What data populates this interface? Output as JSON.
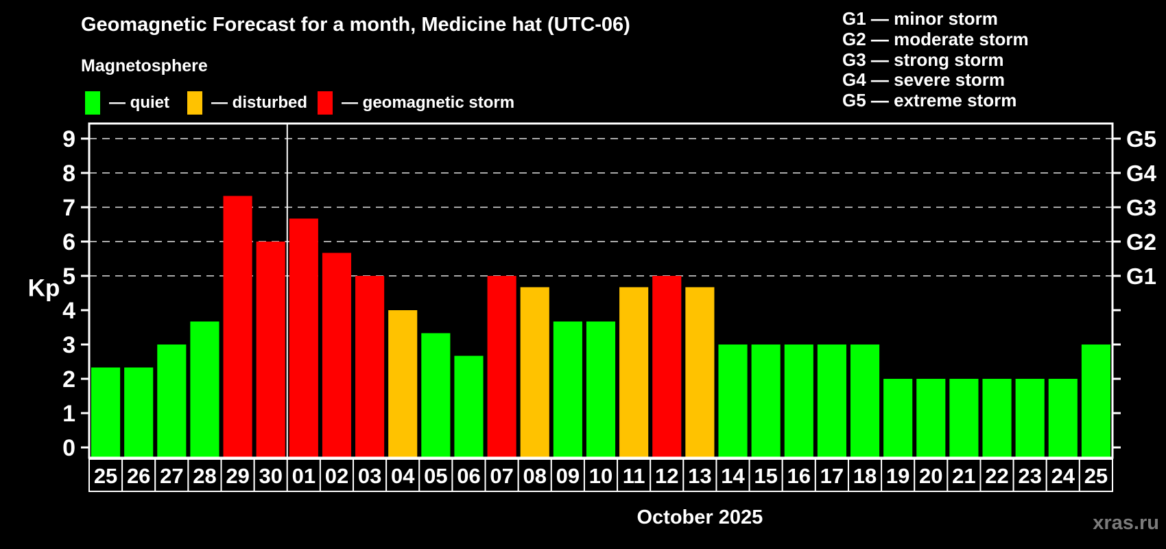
{
  "header": {
    "title": "Geomagnetic Forecast for a month, Medicine hat (UTC-06)",
    "subtitle": "Magnetosphere"
  },
  "legend": {
    "items": [
      {
        "label": "— quiet",
        "status": "quiet"
      },
      {
        "label": "— disturbed",
        "status": "disturbed"
      },
      {
        "label": "— geomagnetic storm",
        "status": "storm"
      }
    ]
  },
  "g_legend": {
    "items": [
      "G1 — minor storm",
      "G2 — moderate storm",
      "G3 — strong storm",
      "G4 — severe storm",
      "G5 — extreme storm"
    ]
  },
  "footer": {
    "watermark": "xras.ru"
  },
  "chart_data": {
    "type": "bar",
    "title": "Geomagnetic Forecast for a month, Medicine hat (UTC-06)",
    "xlabel": "October 2025",
    "ylabel": "Kp",
    "ylim": [
      -0.3,
      9.44
    ],
    "yticks": [
      0,
      1,
      2,
      3,
      4,
      5,
      6,
      7,
      8,
      9
    ],
    "gridlines_at": [
      5,
      6,
      7,
      8,
      9
    ],
    "grid": "dashed",
    "legend_position": "top-left",
    "right_axis": [
      {
        "kp": 5,
        "label": "G1"
      },
      {
        "kp": 6,
        "label": "G2"
      },
      {
        "kp": 7,
        "label": "G3"
      },
      {
        "kp": 8,
        "label": "G4"
      },
      {
        "kp": 9,
        "label": "G5"
      }
    ],
    "month_divider_after_index": 5,
    "categories": [
      "25",
      "26",
      "27",
      "28",
      "29",
      "30",
      "01",
      "02",
      "03",
      "04",
      "05",
      "06",
      "07",
      "08",
      "09",
      "10",
      "11",
      "12",
      "13",
      "14",
      "15",
      "16",
      "17",
      "18",
      "19",
      "20",
      "21",
      "22",
      "23",
      "24",
      "25"
    ],
    "values": [
      2.33,
      2.33,
      3.0,
      3.67,
      7.33,
      6.0,
      6.67,
      5.67,
      5.0,
      4.0,
      3.33,
      2.67,
      5.0,
      4.67,
      3.67,
      3.67,
      4.67,
      5.0,
      4.67,
      3.0,
      3.0,
      3.0,
      3.0,
      3.0,
      2.0,
      2.0,
      2.0,
      2.0,
      2.0,
      2.0,
      3.0
    ],
    "statuses": [
      "quiet",
      "quiet",
      "quiet",
      "quiet",
      "storm",
      "storm",
      "storm",
      "storm",
      "storm",
      "disturbed",
      "quiet",
      "quiet",
      "storm",
      "disturbed",
      "quiet",
      "quiet",
      "disturbed",
      "storm",
      "disturbed",
      "quiet",
      "quiet",
      "quiet",
      "quiet",
      "quiet",
      "quiet",
      "quiet",
      "quiet",
      "quiet",
      "quiet",
      "quiet",
      "quiet"
    ],
    "colors": {
      "quiet": "#00ff00",
      "disturbed": "#ffc200",
      "storm": "#ff0000"
    }
  }
}
